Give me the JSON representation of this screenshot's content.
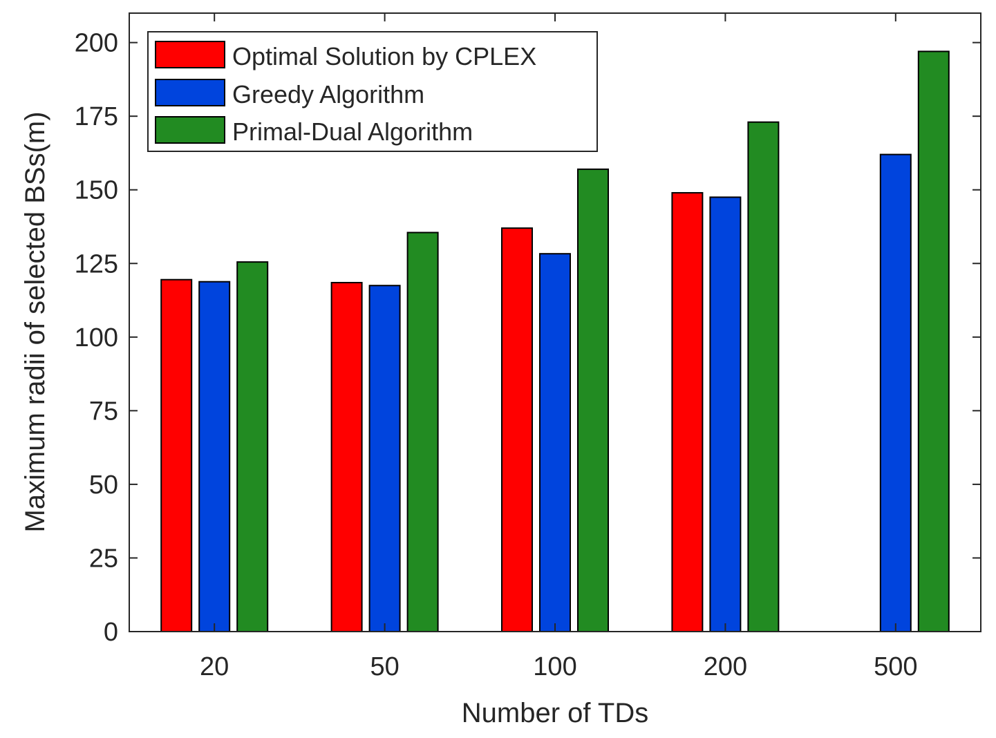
{
  "chart_data": {
    "type": "bar",
    "title": "",
    "xlabel": "Number of TDs",
    "ylabel": "Maximum radii of selected BSs(m)",
    "categories": [
      "20",
      "50",
      "100",
      "200",
      "500"
    ],
    "ylim": [
      0,
      210
    ],
    "yticks": [
      0,
      25,
      50,
      75,
      100,
      125,
      150,
      175,
      200
    ],
    "grid": false,
    "legend_position": "top-left",
    "series": [
      {
        "name": "Optimal Solution by CPLEX",
        "color": "#ff0000",
        "values": [
          119.5,
          118.5,
          137,
          149,
          null
        ]
      },
      {
        "name": "Greedy Algorithm",
        "color": "#0044dd",
        "values": [
          118.8,
          117.5,
          128.3,
          147.5,
          162
        ]
      },
      {
        "name": "Primal-Dual Algorithm",
        "color": "#228b22",
        "values": [
          125.5,
          135.5,
          157,
          173,
          197
        ]
      }
    ]
  }
}
